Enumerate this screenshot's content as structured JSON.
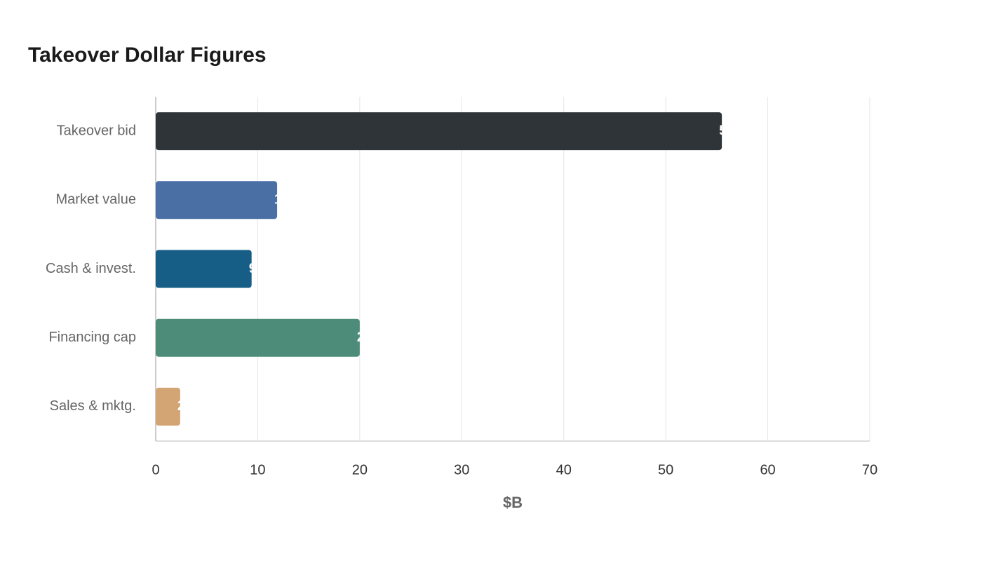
{
  "chart_data": {
    "type": "hbar",
    "title": "Takeover Dollar Figures",
    "categories": [
      "Takeover bid",
      "Market value",
      "Cash & invest.",
      "Financing cap",
      "Sales & mktg."
    ],
    "values": [
      55.5,
      11.9,
      9.4,
      20.0,
      2.4
    ],
    "colors": [
      "#2e3438",
      "#4a6fa5",
      "#175e87",
      "#4e8c7a",
      "#d4a574"
    ],
    "x_label": "$B",
    "xlim": [
      0,
      70
    ],
    "xticks": [
      0,
      10,
      20,
      30,
      40,
      50,
      60,
      70
    ],
    "grid": true
  }
}
